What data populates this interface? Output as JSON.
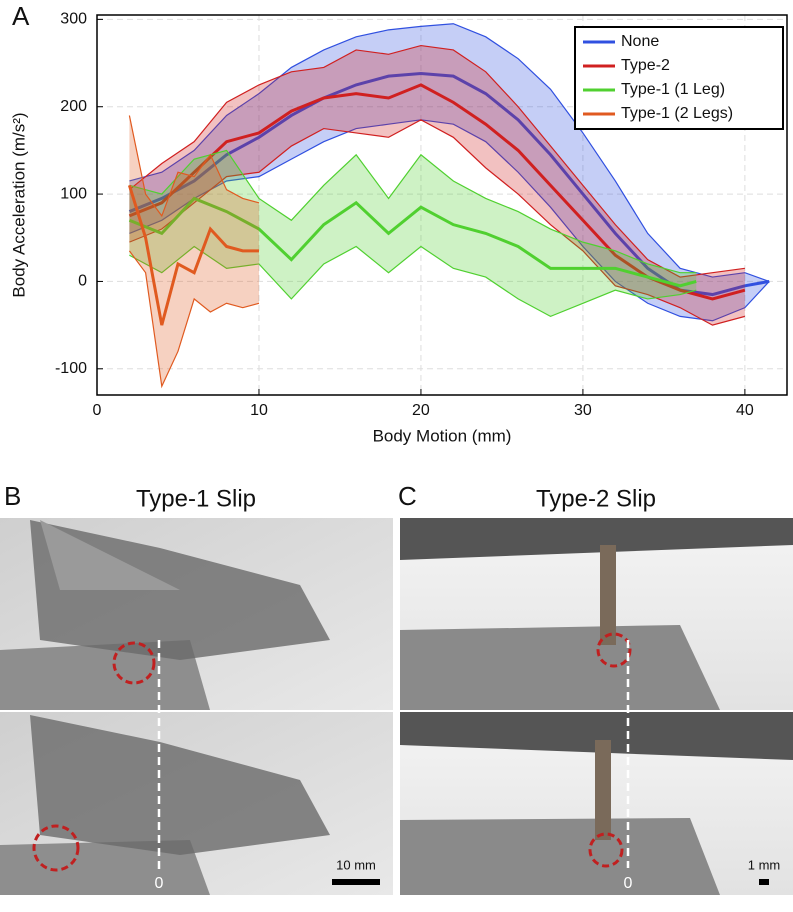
{
  "chart_data": {
    "type": "line",
    "x_label": "Body Motion (mm)",
    "y_label": "Body Acceleration (m/s²)",
    "xlim": [
      0,
      42.6
    ],
    "ylim": [
      -130,
      305
    ],
    "xticks": [
      0,
      10,
      20,
      30,
      40
    ],
    "yticks": [
      -100,
      0,
      100,
      200,
      300
    ],
    "grid": true,
    "legend": "upper right",
    "series": [
      {
        "name": "None",
        "color": "#3050e0",
        "x": [
          2,
          4,
          6,
          8,
          10,
          12,
          14,
          16,
          18,
          20,
          22,
          24,
          26,
          28,
          30,
          32,
          34,
          36,
          38,
          40,
          41.5
        ],
        "values": [
          80,
          95,
          115,
          145,
          165,
          190,
          210,
          225,
          235,
          238,
          235,
          215,
          185,
          145,
          100,
          55,
          15,
          -10,
          -15,
          -5,
          0
        ],
        "upper": [
          115,
          125,
          150,
          190,
          215,
          245,
          265,
          280,
          288,
          292,
          295,
          280,
          255,
          220,
          170,
          115,
          55,
          15,
          5,
          10,
          0
        ],
        "lower": [
          55,
          70,
          95,
          115,
          120,
          140,
          160,
          175,
          180,
          185,
          180,
          160,
          125,
          85,
          40,
          0,
          -25,
          -40,
          -45,
          -30,
          0
        ]
      },
      {
        "name": "Type-2",
        "color": "#d02020",
        "x": [
          2,
          4,
          6,
          8,
          10,
          12,
          14,
          16,
          18,
          20,
          22,
          24,
          26,
          28,
          30,
          32,
          34,
          36,
          38,
          40
        ],
        "values": [
          75,
          90,
          125,
          160,
          170,
          195,
          210,
          215,
          210,
          225,
          205,
          180,
          150,
          110,
          70,
          30,
          5,
          -10,
          -20,
          -10
        ],
        "upper": [
          105,
          135,
          160,
          205,
          225,
          240,
          245,
          265,
          260,
          270,
          265,
          240,
          200,
          155,
          110,
          65,
          25,
          5,
          10,
          15
        ],
        "lower": [
          45,
          60,
          90,
          120,
          125,
          155,
          175,
          170,
          165,
          185,
          165,
          130,
          100,
          65,
          35,
          -5,
          -15,
          -30,
          -50,
          -40
        ]
      },
      {
        "name": "Type-1 (1 Leg)",
        "color": "#50d030",
        "x": [
          2,
          4,
          6,
          8,
          10,
          12,
          14,
          16,
          18,
          20,
          22,
          24,
          26,
          28,
          30,
          32,
          34,
          36,
          37
        ],
        "values": [
          70,
          55,
          95,
          80,
          60,
          25,
          65,
          90,
          55,
          85,
          65,
          55,
          40,
          15,
          15,
          15,
          5,
          -5,
          0
        ],
        "upper": [
          110,
          100,
          140,
          150,
          95,
          70,
          110,
          145,
          95,
          145,
          115,
          95,
          80,
          60,
          45,
          35,
          20,
          10,
          10
        ],
        "lower": [
          30,
          10,
          40,
          15,
          20,
          -20,
          20,
          40,
          10,
          40,
          15,
          5,
          -20,
          -40,
          -25,
          -10,
          -20,
          -15,
          -10
        ]
      },
      {
        "name": "Type-1 (2 Legs)",
        "color": "#e05a20",
        "x": [
          2,
          3,
          4,
          5,
          6,
          7,
          8,
          9,
          10
        ],
        "values": [
          110,
          50,
          -50,
          20,
          10,
          60,
          40,
          35,
          35
        ],
        "upper": [
          190,
          100,
          75,
          125,
          120,
          145,
          105,
          95,
          90
        ],
        "lower": [
          35,
          10,
          -120,
          -80,
          -20,
          -35,
          -25,
          -30,
          -25
        ]
      }
    ]
  },
  "panels": {
    "a_label": "A",
    "b": {
      "label": "B",
      "title": "Type-1 Slip",
      "zero": "0",
      "scale": "10 mm"
    },
    "c": {
      "label": "C",
      "title": "Type-2 Slip",
      "zero": "0",
      "scale": "1 mm"
    }
  }
}
